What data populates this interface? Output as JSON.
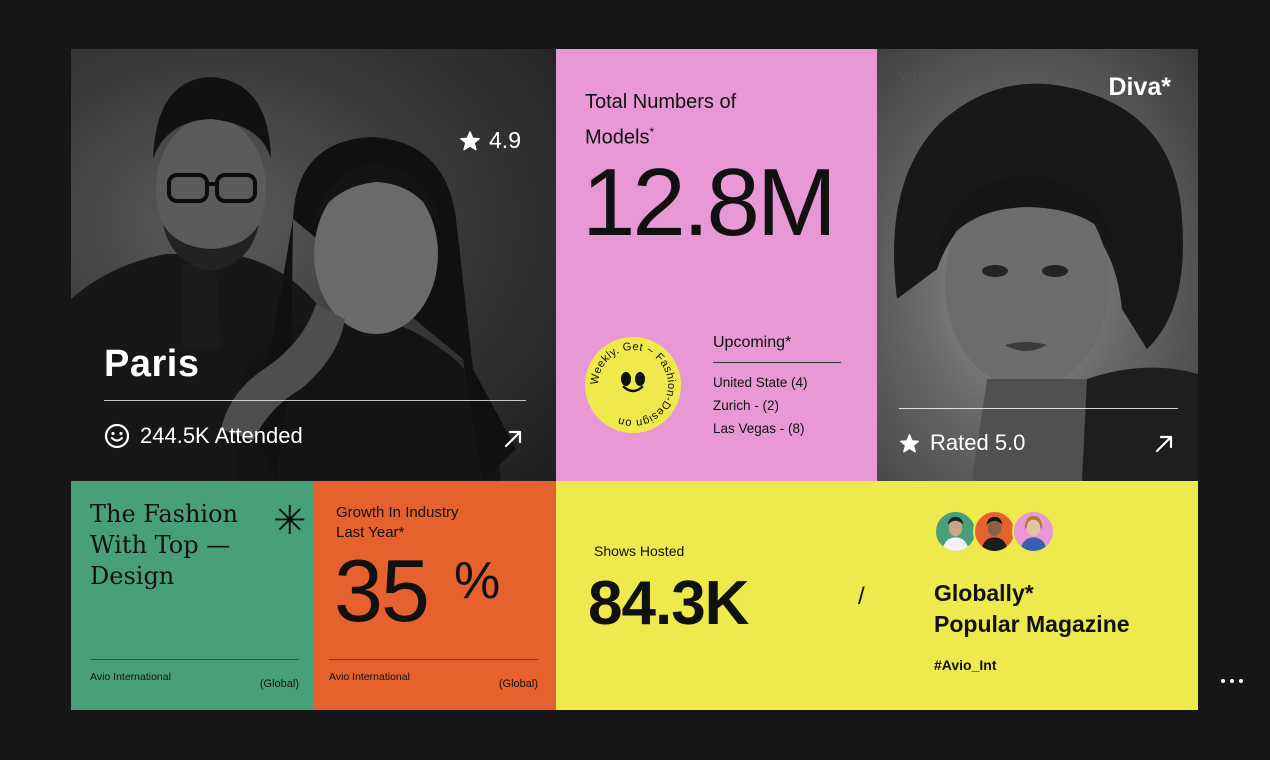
{
  "paris_card": {
    "rating": "4.9",
    "title": "Paris",
    "attended": "244.5K Attended",
    "star_icon": "star-icon",
    "smiley_icon": "smiley-icon",
    "arrow_icon": "arrow-up-right-icon"
  },
  "models_card": {
    "title_line1": "Total Numbers of",
    "title_line2": "Models",
    "title_sup": "*",
    "value": "12.8M",
    "badge_text": "Weekly. Get ~ Fashion-Design on ",
    "upcoming_title": "Upcoming*",
    "upcoming_items": [
      "United State (4)",
      "Zurich - (2)",
      "Las Vegas - (8)"
    ],
    "background": "#E898D4"
  },
  "diva_card": {
    "vol_label": "Vol 2.0",
    "title": "Diva*",
    "rated": "Rated 5.0",
    "star_icon": "star-icon",
    "arrow_icon": "arrow-up-right-icon"
  },
  "fashion_card": {
    "title": "The Fashion With Top — Design",
    "foot_left": "Avio International",
    "foot_right": "(Global)",
    "background": "#48A07B"
  },
  "growth_card": {
    "title": "Growth In Industry Last Year*",
    "value": "35",
    "value_suffix": "%",
    "foot_left": "Avio International",
    "foot_right": "(Global)",
    "background": "#E5622E"
  },
  "shows_card": {
    "title": "Shows Hosted",
    "value": "84.3K",
    "separator": "/",
    "magazine_line1": "Globally*",
    "magazine_line2": "Popular Magazine",
    "hashtag": "#Avio_Int",
    "avatar_bg_colors": [
      "#48A07B",
      "#E5622E",
      "#E898D4"
    ],
    "background": "#EEE94C"
  }
}
